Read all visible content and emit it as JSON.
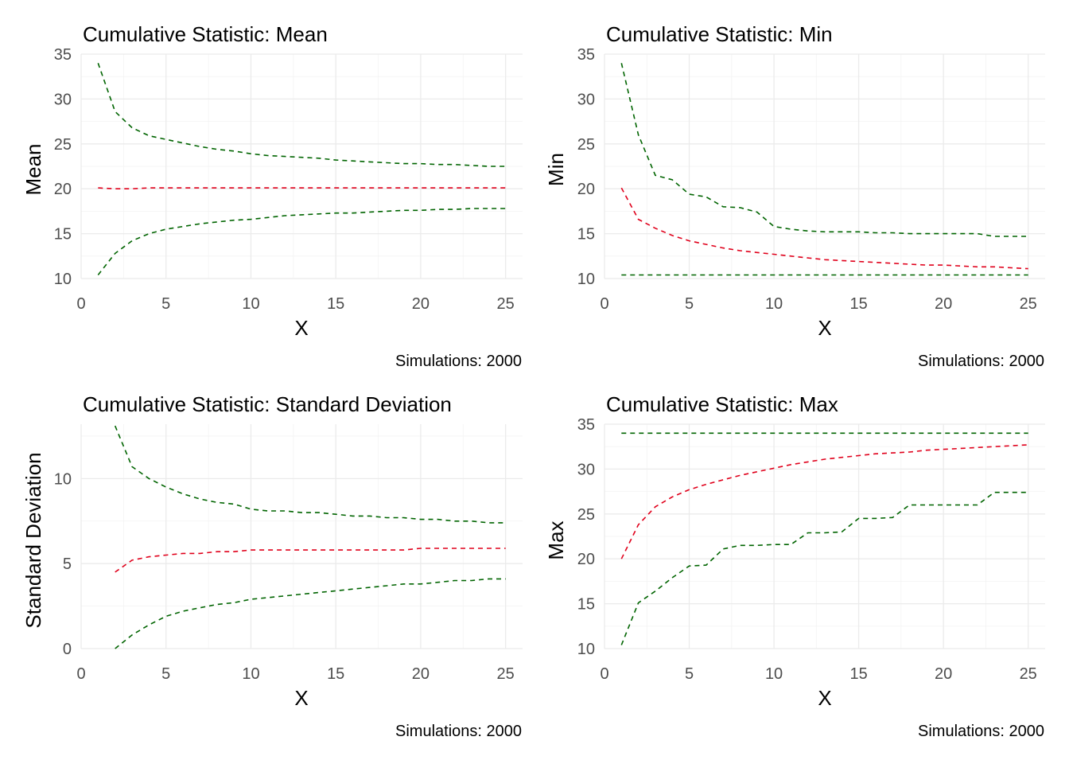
{
  "colors": {
    "band": "#006400",
    "center": "#e0001b"
  },
  "chart_data": [
    {
      "type": "line",
      "title": "Cumulative Statistic: Mean",
      "xlabel": "X",
      "ylabel": "Mean",
      "caption": "Simulations: 2000",
      "xlim": [
        0,
        26
      ],
      "ylim": [
        10,
        35
      ],
      "xticks": [
        0,
        5,
        10,
        15,
        20,
        25
      ],
      "yticks": [
        10,
        15,
        20,
        25,
        30,
        35
      ],
      "x": [
        1,
        2,
        3,
        4,
        5,
        6,
        7,
        8,
        9,
        10,
        11,
        12,
        13,
        14,
        15,
        16,
        17,
        18,
        19,
        20,
        21,
        22,
        23,
        24,
        25
      ],
      "series": [
        {
          "role": "upper",
          "color": "#006400",
          "values": [
            34.0,
            28.6,
            26.8,
            25.9,
            25.5,
            25.1,
            24.7,
            24.4,
            24.2,
            23.9,
            23.7,
            23.6,
            23.5,
            23.4,
            23.2,
            23.1,
            23.0,
            22.9,
            22.8,
            22.8,
            22.7,
            22.7,
            22.6,
            22.5,
            22.5
          ]
        },
        {
          "role": "center",
          "color": "#e0001b",
          "values": [
            20.1,
            20.0,
            20.0,
            20.1,
            20.1,
            20.1,
            20.1,
            20.1,
            20.1,
            20.1,
            20.1,
            20.1,
            20.1,
            20.1,
            20.1,
            20.1,
            20.1,
            20.1,
            20.1,
            20.1,
            20.1,
            20.1,
            20.1,
            20.1,
            20.1
          ]
        },
        {
          "role": "lower",
          "color": "#006400",
          "values": [
            10.4,
            12.8,
            14.2,
            15.0,
            15.5,
            15.8,
            16.1,
            16.3,
            16.5,
            16.6,
            16.8,
            17.0,
            17.1,
            17.2,
            17.3,
            17.3,
            17.4,
            17.5,
            17.6,
            17.6,
            17.7,
            17.7,
            17.8,
            17.8,
            17.8
          ]
        }
      ]
    },
    {
      "type": "line",
      "title": "Cumulative Statistic: Min",
      "xlabel": "X",
      "ylabel": "Min",
      "caption": "Simulations: 2000",
      "xlim": [
        0,
        26
      ],
      "ylim": [
        10,
        35
      ],
      "xticks": [
        0,
        5,
        10,
        15,
        20,
        25
      ],
      "yticks": [
        10,
        15,
        20,
        25,
        30,
        35
      ],
      "x": [
        1,
        2,
        3,
        4,
        5,
        6,
        7,
        8,
        9,
        10,
        11,
        12,
        13,
        14,
        15,
        16,
        17,
        18,
        19,
        20,
        21,
        22,
        23,
        24,
        25
      ],
      "series": [
        {
          "role": "upper",
          "color": "#006400",
          "values": [
            34.0,
            26.0,
            21.5,
            21.0,
            19.4,
            19.1,
            18.0,
            17.9,
            17.4,
            15.8,
            15.5,
            15.3,
            15.2,
            15.2,
            15.2,
            15.1,
            15.1,
            15.0,
            15.0,
            15.0,
            15.0,
            15.0,
            14.7,
            14.7,
            14.7
          ]
        },
        {
          "role": "center",
          "color": "#e0001b",
          "values": [
            20.1,
            16.6,
            15.6,
            14.8,
            14.2,
            13.8,
            13.4,
            13.1,
            12.9,
            12.7,
            12.5,
            12.3,
            12.1,
            12.0,
            11.9,
            11.8,
            11.7,
            11.6,
            11.5,
            11.5,
            11.4,
            11.3,
            11.3,
            11.2,
            11.1
          ]
        },
        {
          "role": "lower",
          "color": "#006400",
          "values": [
            10.4,
            10.4,
            10.4,
            10.4,
            10.4,
            10.4,
            10.4,
            10.4,
            10.4,
            10.4,
            10.4,
            10.4,
            10.4,
            10.4,
            10.4,
            10.4,
            10.4,
            10.4,
            10.4,
            10.4,
            10.4,
            10.4,
            10.4,
            10.4,
            10.4
          ]
        }
      ]
    },
    {
      "type": "line",
      "title": "Cumulative Statistic: Standard Deviation",
      "xlabel": "X",
      "ylabel": "Standard Deviation",
      "caption": "Simulations: 2000",
      "xlim": [
        0,
        26
      ],
      "ylim": [
        0,
        13.2
      ],
      "xticks": [
        0,
        5,
        10,
        15,
        20,
        25
      ],
      "yticks": [
        0,
        5,
        10
      ],
      "x": [
        2,
        3,
        4,
        5,
        6,
        7,
        8,
        9,
        10,
        11,
        12,
        13,
        14,
        15,
        16,
        17,
        18,
        19,
        20,
        21,
        22,
        23,
        24,
        25
      ],
      "series": [
        {
          "role": "upper",
          "color": "#006400",
          "values": [
            13.1,
            10.7,
            10.0,
            9.5,
            9.1,
            8.8,
            8.6,
            8.5,
            8.2,
            8.1,
            8.1,
            8.0,
            8.0,
            7.9,
            7.8,
            7.8,
            7.7,
            7.7,
            7.6,
            7.6,
            7.5,
            7.5,
            7.4,
            7.4
          ]
        },
        {
          "role": "center",
          "color": "#e0001b",
          "values": [
            4.5,
            5.2,
            5.4,
            5.5,
            5.6,
            5.6,
            5.7,
            5.7,
            5.8,
            5.8,
            5.8,
            5.8,
            5.8,
            5.8,
            5.8,
            5.8,
            5.8,
            5.8,
            5.9,
            5.9,
            5.9,
            5.9,
            5.9,
            5.9
          ]
        },
        {
          "role": "lower",
          "color": "#006400",
          "values": [
            0.0,
            0.8,
            1.4,
            1.9,
            2.2,
            2.4,
            2.6,
            2.7,
            2.9,
            3.0,
            3.1,
            3.2,
            3.3,
            3.4,
            3.5,
            3.6,
            3.7,
            3.8,
            3.8,
            3.9,
            4.0,
            4.0,
            4.1,
            4.1
          ]
        }
      ]
    },
    {
      "type": "line",
      "title": "Cumulative Statistic: Max",
      "xlabel": "X",
      "ylabel": "Max",
      "caption": "Simulations: 2000",
      "xlim": [
        0,
        26
      ],
      "ylim": [
        10,
        35
      ],
      "xticks": [
        0,
        5,
        10,
        15,
        20,
        25
      ],
      "yticks": [
        10,
        15,
        20,
        25,
        30,
        35
      ],
      "x": [
        1,
        2,
        3,
        4,
        5,
        6,
        7,
        8,
        9,
        10,
        11,
        12,
        13,
        14,
        15,
        16,
        17,
        18,
        19,
        20,
        21,
        22,
        23,
        24,
        25
      ],
      "series": [
        {
          "role": "upper",
          "color": "#006400",
          "values": [
            34.0,
            34.0,
            34.0,
            34.0,
            34.0,
            34.0,
            34.0,
            34.0,
            34.0,
            34.0,
            34.0,
            34.0,
            34.0,
            34.0,
            34.0,
            34.0,
            34.0,
            34.0,
            34.0,
            34.0,
            34.0,
            34.0,
            34.0,
            34.0,
            34.0
          ]
        },
        {
          "role": "center",
          "color": "#e0001b",
          "values": [
            20.0,
            23.8,
            25.8,
            26.9,
            27.7,
            28.3,
            28.8,
            29.3,
            29.7,
            30.1,
            30.5,
            30.8,
            31.1,
            31.3,
            31.5,
            31.7,
            31.8,
            31.9,
            32.1,
            32.2,
            32.3,
            32.4,
            32.5,
            32.6,
            32.7
          ]
        },
        {
          "role": "lower",
          "color": "#006400",
          "values": [
            10.4,
            15.1,
            16.4,
            17.9,
            19.2,
            19.3,
            21.1,
            21.5,
            21.5,
            21.6,
            21.6,
            22.9,
            22.9,
            23.0,
            24.5,
            24.5,
            24.6,
            26.0,
            26.0,
            26.0,
            26.0,
            26.0,
            27.4,
            27.4,
            27.4
          ]
        }
      ]
    }
  ]
}
